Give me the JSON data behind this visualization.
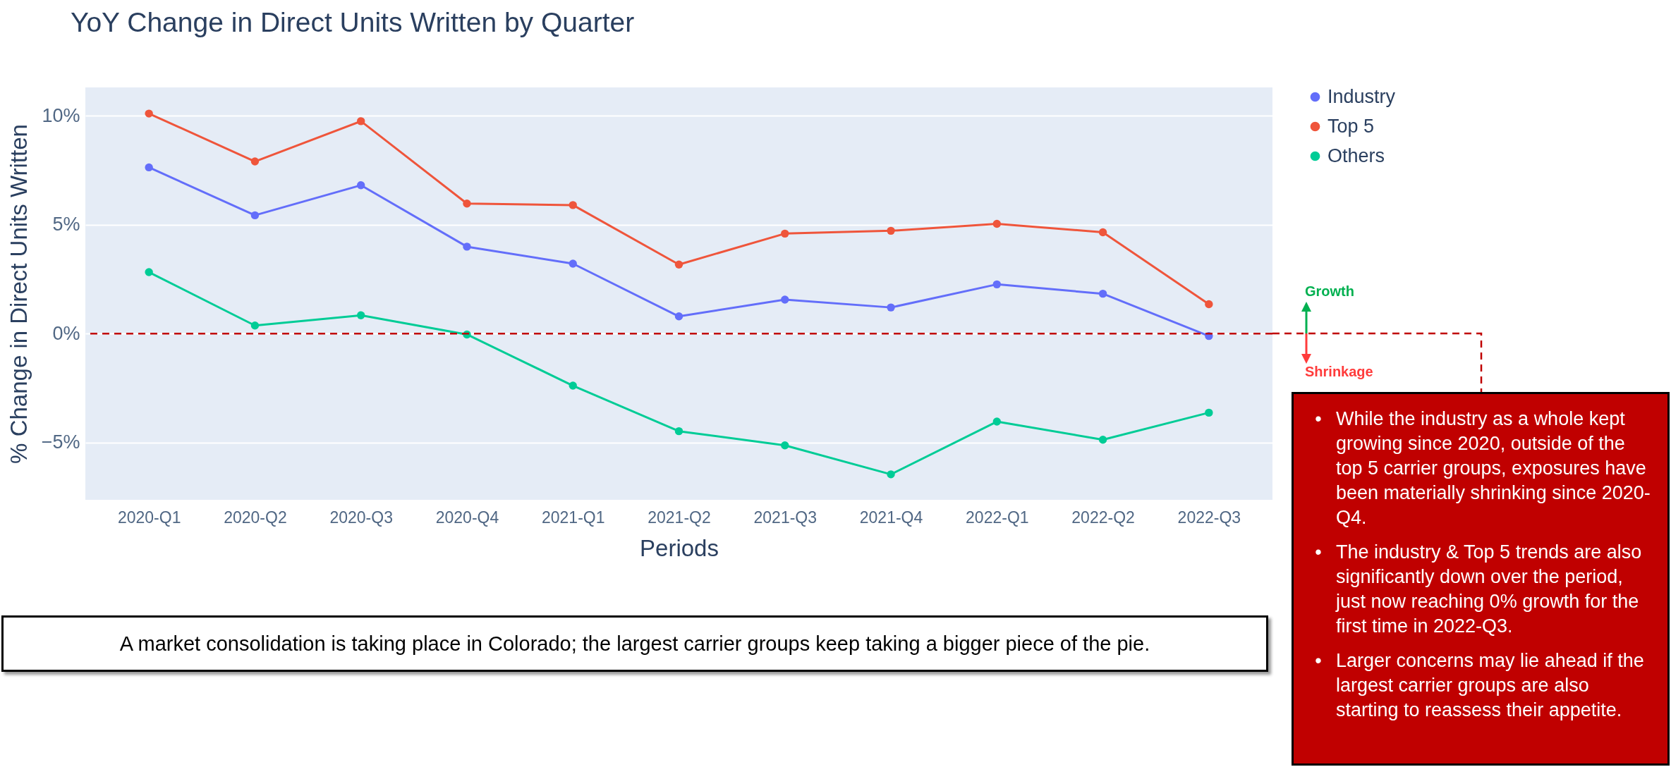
{
  "chart_data": {
    "type": "line",
    "title": "YoY Change in Direct Units Written by Quarter",
    "xlabel": "Periods",
    "ylabel": "% Change in Direct Units Written",
    "categories": [
      "2020-Q1",
      "2020-Q2",
      "2020-Q3",
      "2020-Q4",
      "2021-Q1",
      "2021-Q2",
      "2021-Q3",
      "2021-Q4",
      "2022-Q1",
      "2022-Q2",
      "2022-Q3"
    ],
    "series": [
      {
        "name": "Industry",
        "color": "#636efa",
        "values": [
          7.63,
          5.43,
          6.81,
          3.99,
          3.21,
          0.79,
          1.56,
          1.2,
          2.26,
          1.83,
          -0.11
        ]
      },
      {
        "name": "Top 5",
        "color": "#ef553b",
        "values": [
          10.1,
          7.9,
          9.75,
          5.97,
          5.9,
          3.17,
          4.59,
          4.72,
          5.04,
          4.65,
          1.35
        ]
      },
      {
        "name": "Others",
        "color": "#00cc96",
        "values": [
          2.82,
          0.37,
          0.84,
          -0.04,
          -2.39,
          -4.48,
          -5.13,
          -6.46,
          -4.04,
          -4.87,
          -3.63
        ]
      }
    ],
    "ylim": [
      -7.63,
      11.3
    ],
    "yticks": [
      {
        "value": -5,
        "label": "−5%"
      },
      {
        "value": 0,
        "label": "0%"
      },
      {
        "value": 5,
        "label": "5%"
      },
      {
        "value": 10,
        "label": "10%"
      }
    ],
    "ref_lines": [
      {
        "axis": "y",
        "value": 0,
        "color": "#c00000",
        "line_style": "dashed"
      }
    ],
    "grid": "y",
    "legend": "top right",
    "marker": "circle",
    "line_style": "solid",
    "annotations": [
      "A market consolidation is taking place in Colorado; the largest carrier groups keep taking a bigger piece of the pie.",
      "Growth",
      "Shrinkage",
      "• While the industry as a whole kept growing since 2020, outside of the top 5 carrier groups, exposures have been materially shrinking since 2020-Q4.",
      "• The industry & Top 5 trends are also significantly down over the period, just now reaching 0% growth for the first time in 2022-Q3.",
      "• Larger concerns may lie ahead if the largest carrier groups are also starting to reassess their appetite."
    ]
  }
}
